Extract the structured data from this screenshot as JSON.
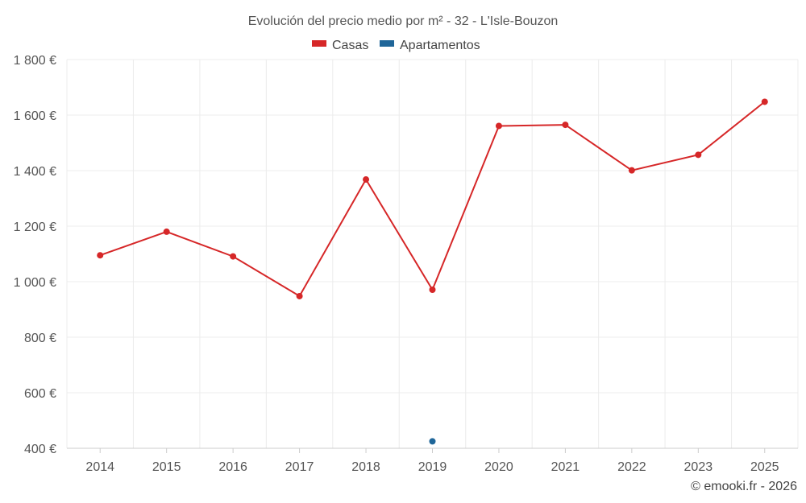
{
  "chart_data": {
    "type": "line",
    "title": "Evolución del precio medio por m² - 32 - L'Isle-Bouzon",
    "categories": [
      "2014",
      "2015",
      "2016",
      "2017",
      "2018",
      "2019",
      "2020",
      "2021",
      "2022",
      "2023",
      "2025"
    ],
    "series": [
      {
        "name": "Casas",
        "color": "#d62728",
        "values": [
          1095,
          1180,
          1091,
          948,
          1368,
          971,
          1561,
          1565,
          1401,
          1457,
          1648
        ]
      },
      {
        "name": "Apartamentos",
        "color": "#1f6699",
        "values": [
          null,
          null,
          null,
          null,
          null,
          425,
          null,
          null,
          null,
          null,
          null
        ]
      }
    ],
    "y_ticks": [
      400,
      600,
      800,
      1000,
      1200,
      1400,
      1600,
      1800
    ],
    "y_tick_labels": [
      "400 €",
      "600 €",
      "800 €",
      "1 000 €",
      "1 200 €",
      "1 400 €",
      "1 600 €",
      "1 800 €"
    ],
    "ylim": [
      400,
      1800
    ],
    "xlabel": "",
    "ylabel": "",
    "grid": true,
    "legend_position": "top-center"
  },
  "credit": "© emooki.fr - 2026"
}
